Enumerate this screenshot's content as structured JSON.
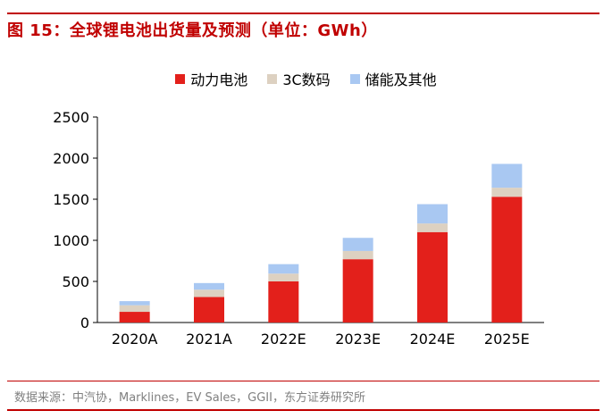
{
  "figure": {
    "title": "图 15：全球锂电池出货量及预测（单位：GWh）",
    "source": "数据来源：中汽协，Marklines，EV Sales，GGII，东方证券研究所"
  },
  "colors": {
    "accent": "#c00000",
    "power": "#e3201b",
    "consumer": "#ddd1c1",
    "storage": "#a9c8f2"
  },
  "chart_data": {
    "type": "bar",
    "stacked": true,
    "categories": [
      "2020A",
      "2021A",
      "2022E",
      "2023E",
      "2024E",
      "2025E"
    ],
    "series": [
      {
        "name": "动力电池",
        "color": "#e3201b",
        "values": [
          130,
          310,
          500,
          770,
          1100,
          1530
        ]
      },
      {
        "name": "3C数码",
        "color": "#ddd1c1",
        "values": [
          80,
          90,
          95,
          100,
          105,
          110
        ]
      },
      {
        "name": "储能及其他",
        "color": "#a9c8f2",
        "values": [
          50,
          80,
          115,
          160,
          235,
          290
        ]
      }
    ],
    "yticks": [
      "0",
      "500",
      "1000",
      "1500",
      "2000",
      "2500"
    ],
    "ylim": [
      0,
      2500
    ],
    "legend_position": "top-center",
    "grid": false
  }
}
